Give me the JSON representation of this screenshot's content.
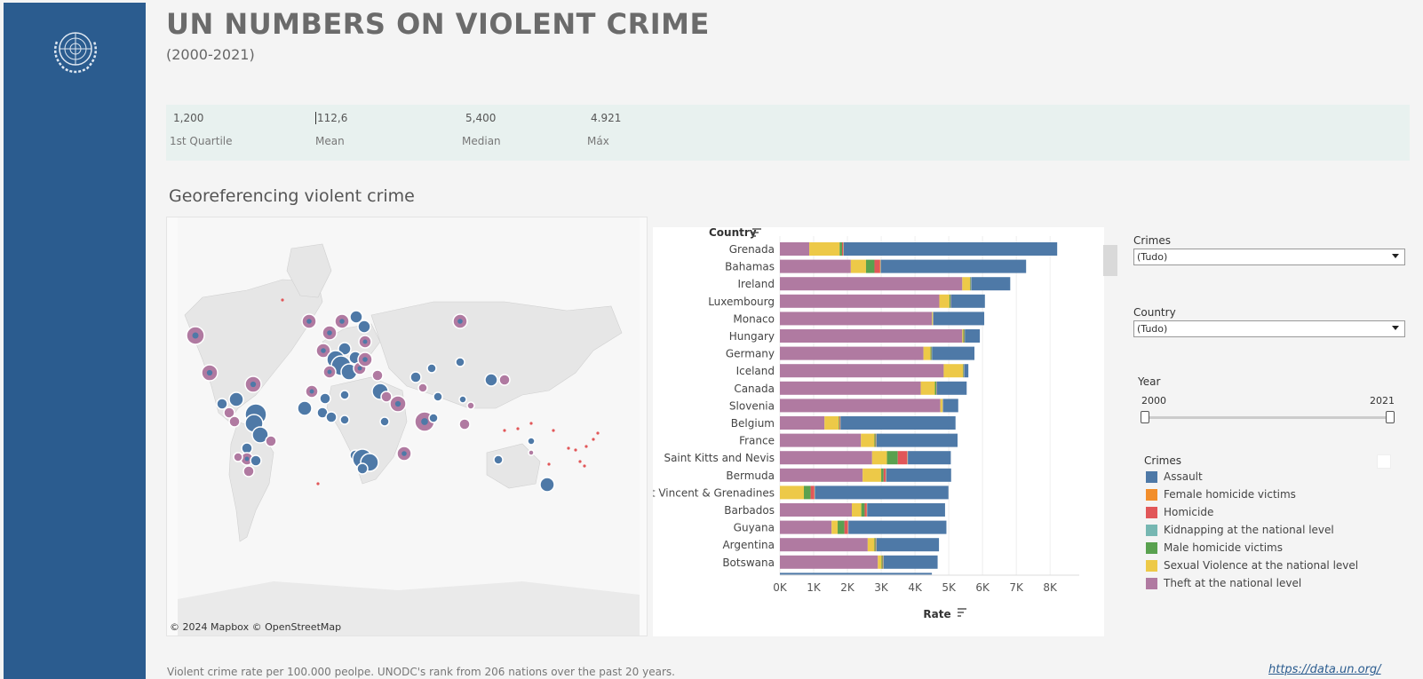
{
  "header": {
    "title": "UN NUMBERS ON VIOLENT CRIME",
    "subtitle": "(2000-2021)"
  },
  "stats": [
    {
      "value": "1,200",
      "label": "1st Quartile"
    },
    {
      "value": "112,6",
      "label": "Mean"
    },
    {
      "value": "5,400",
      "label": "Median"
    },
    {
      "value": "4.921",
      "label": "Máx"
    }
  ],
  "section_title": "Georeferencing violent crime",
  "map": {
    "credit": "© 2024 Mapbox  © OpenStreetMap"
  },
  "chart_data": {
    "type": "bar",
    "orientation": "horizontal",
    "stacked": true,
    "y_header": "Country",
    "xlabel": "Rate",
    "x_ticks": [
      "0K",
      "1K",
      "2K",
      "3K",
      "4K",
      "5K",
      "6K",
      "7K",
      "8K"
    ],
    "xlim": [
      0,
      8600
    ],
    "categories": [
      "Grenada",
      "Bahamas",
      "Ireland",
      "Luxembourg",
      "Monaco",
      "Hungary",
      "Germany",
      "Iceland",
      "Canada",
      "Slovenia",
      "Belgium",
      "France",
      "Saint Kitts and Nevis",
      "Bermuda",
      "Saint Vincent & Grenadines",
      "Barbados",
      "Guyana",
      "Argentina",
      "Botswana"
    ],
    "series": [
      {
        "name": "Theft at the national level",
        "color": "#b07aa1",
        "values": [
          870,
          2100,
          5400,
          4720,
          4500,
          5400,
          4250,
          4850,
          4170,
          4750,
          1320,
          2400,
          2730,
          2450,
          0,
          2130,
          1530,
          2600,
          2900
        ]
      },
      {
        "name": "Sexual Violence at the national level",
        "color": "#edc948",
        "values": [
          900,
          450,
          230,
          300,
          20,
          30,
          210,
          570,
          420,
          60,
          420,
          400,
          440,
          550,
          710,
          280,
          180,
          200,
          110
        ]
      },
      {
        "name": "Male homicide victims",
        "color": "#59a14f",
        "values": [
          70,
          250,
          20,
          30,
          10,
          30,
          30,
          20,
          40,
          10,
          20,
          30,
          320,
          70,
          200,
          100,
          200,
          30,
          30
        ]
      },
      {
        "name": "Homicide",
        "color": "#e15759",
        "values": [
          30,
          160,
          10,
          10,
          10,
          10,
          10,
          10,
          10,
          10,
          20,
          10,
          280,
          60,
          110,
          60,
          100,
          10,
          10
        ]
      },
      {
        "name": "Female homicide victims",
        "color": "#f28e2b",
        "values": [
          10,
          20,
          0,
          0,
          0,
          0,
          0,
          0,
          0,
          0,
          10,
          10,
          10,
          10,
          10,
          10,
          10,
          10,
          10
        ]
      },
      {
        "name": "Kidnapping at the national level",
        "color": "#76b7b2",
        "values": [
          10,
          10,
          10,
          10,
          10,
          10,
          10,
          10,
          10,
          10,
          10,
          10,
          10,
          10,
          10,
          10,
          10,
          10,
          10
        ]
      },
      {
        "name": "Assault",
        "color": "#4e79a7",
        "values": [
          6320,
          4300,
          1150,
          1000,
          1500,
          440,
          1250,
          120,
          880,
          440,
          3400,
          2400,
          1270,
          1920,
          3950,
          2300,
          2900,
          1850,
          1600
        ]
      }
    ]
  },
  "filters": {
    "crimes_label": "Crimes",
    "crimes_value": "(Tudo)",
    "country_label": "Country",
    "country_value": "(Tudo)",
    "year_label": "Year",
    "year_min": "2000",
    "year_max": "2021",
    "year_range": [
      2000,
      2021
    ]
  },
  "legend": {
    "title": "Crimes",
    "items": [
      {
        "label": "Assault",
        "color": "#4e79a7"
      },
      {
        "label": "Female homicide victims",
        "color": "#f28e2b"
      },
      {
        "label": "Homicide",
        "color": "#e15759"
      },
      {
        "label": "Kidnapping at the national level",
        "color": "#76b7b2"
      },
      {
        "label": "Male homicide victims",
        "color": "#59a14f"
      },
      {
        "label": "Sexual Violence at the national level",
        "color": "#edc948"
      },
      {
        "label": "Theft at the national level",
        "color": "#b07aa1"
      }
    ]
  },
  "footer": {
    "note": "Violent crime rate per 100.000 peolpe. UNODC's rank from 206 nations over the past 20 years.",
    "link": "https://data.un.org/"
  },
  "colors": {
    "sidebar": "#2b5c8f",
    "theft": "#b07aa1",
    "assault": "#4e79a7"
  }
}
